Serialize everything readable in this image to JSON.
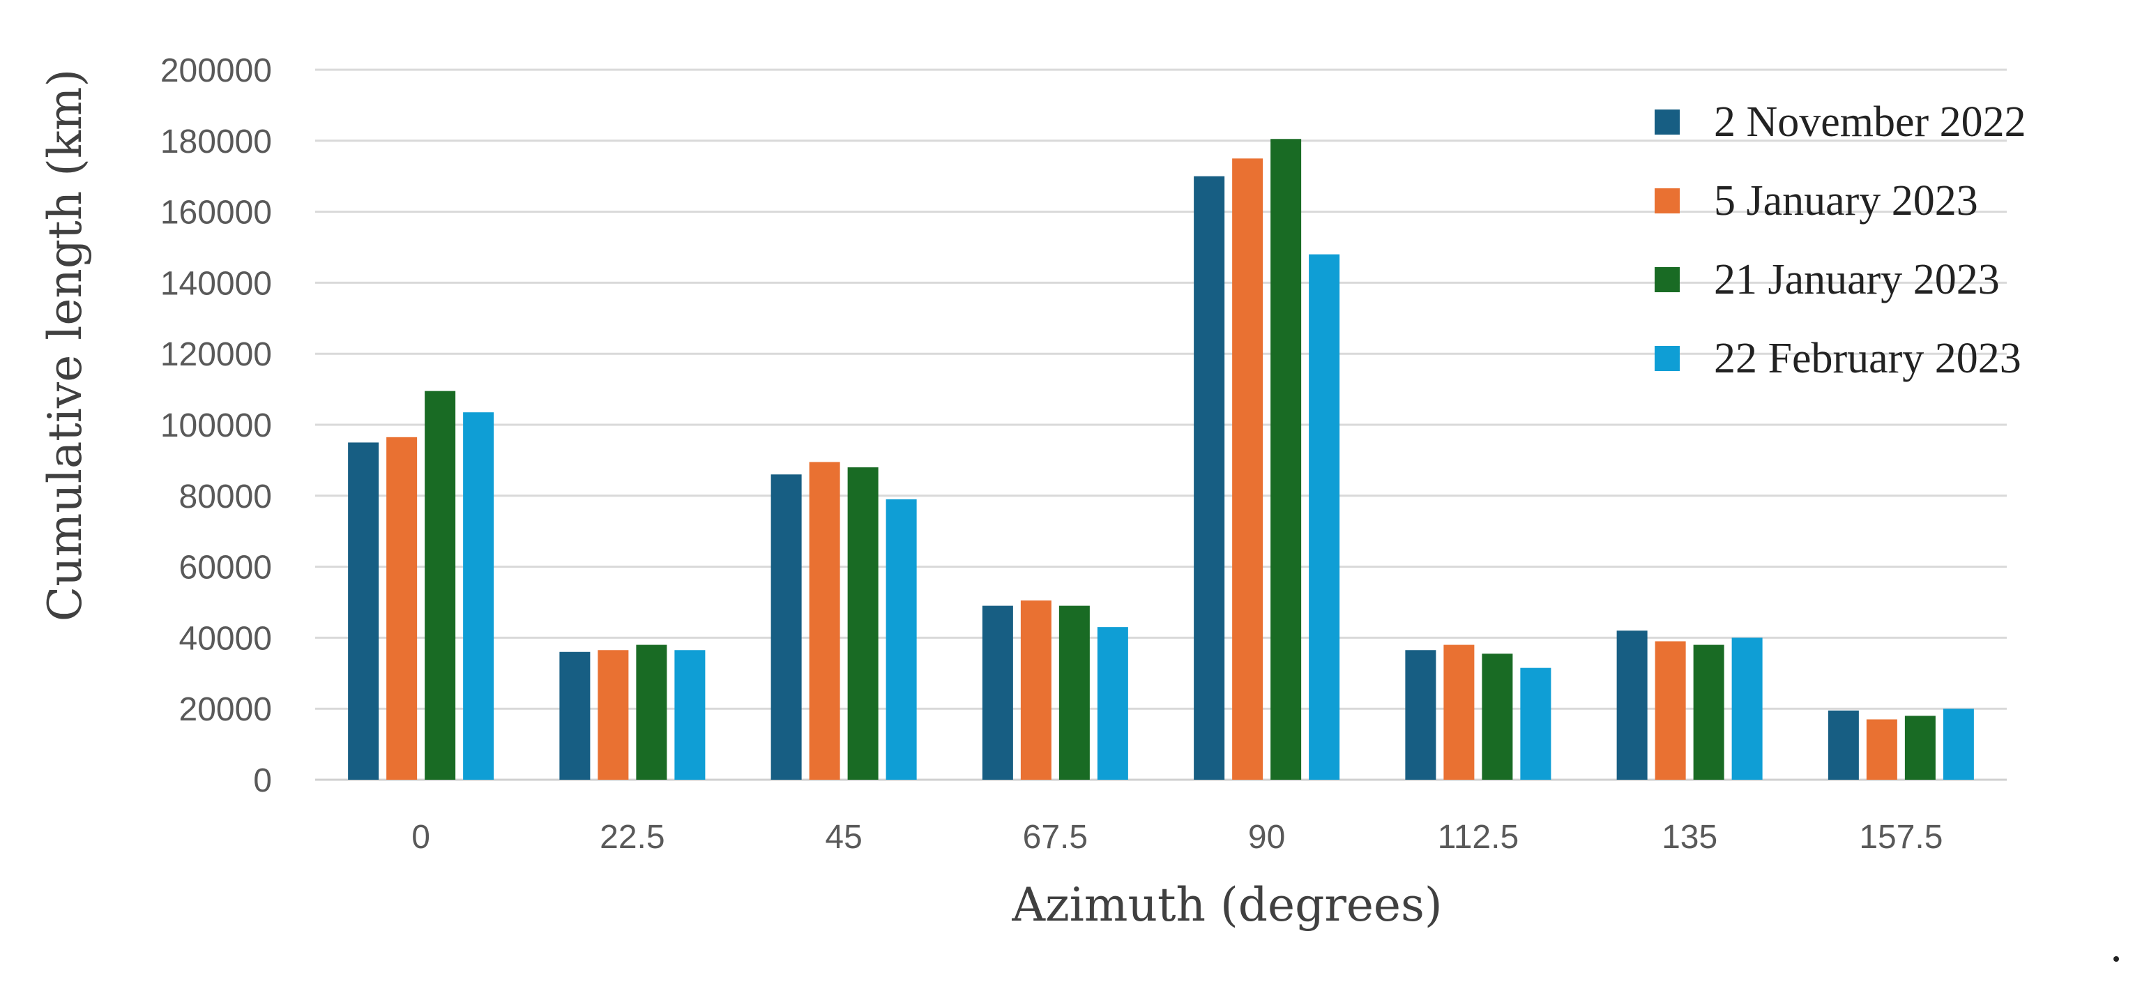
{
  "chart_data": {
    "type": "bar",
    "title": "",
    "xlabel": "Azimuth (degrees)",
    "ylabel": "Cumulative length (km)",
    "categories": [
      "0",
      "22.5",
      "45",
      "67.5",
      "90",
      "112.5",
      "135",
      "157.5"
    ],
    "series": [
      {
        "name": "2 November 2022",
        "color": "#175e83",
        "values": [
          95000,
          36000,
          86000,
          49000,
          170000,
          36500,
          42000,
          19500
        ]
      },
      {
        "name": "5 January 2023",
        "color": "#e97132",
        "values": [
          96500,
          36500,
          89500,
          50500,
          175000,
          38000,
          39000,
          17000
        ]
      },
      {
        "name": "21 January 2023",
        "color": "#196b24",
        "values": [
          109500,
          38000,
          88000,
          49000,
          180500,
          35500,
          38000,
          18000
        ]
      },
      {
        "name": "22 February 2023",
        "color": "#0f9ed5",
        "values": [
          103500,
          36500,
          79000,
          43000,
          148000,
          31500,
          40000,
          20000
        ]
      }
    ],
    "yticks": [
      "0",
      "20000",
      "40000",
      "60000",
      "80000",
      "100000",
      "120000",
      "140000",
      "160000",
      "180000",
      "200000"
    ],
    "ylim": [
      0,
      200000
    ],
    "grid": true,
    "legend_position": "top-right"
  }
}
